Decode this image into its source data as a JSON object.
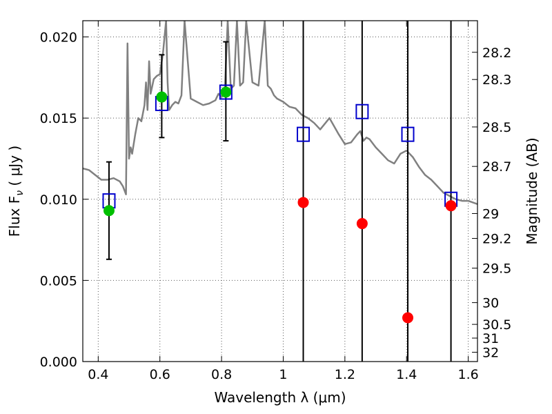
{
  "chart_data": {
    "type": "scatter",
    "xlabel": "Wavelength  λ (μm)",
    "ylabel": "Flux  F",
    "ylabel_sub": "ν",
    "ylabel_units": "  ( μJy )",
    "y2label": "Magnitude (AB)",
    "xlim": [
      0.35,
      1.63
    ],
    "ylim": [
      0.0,
      0.021
    ],
    "grid": true,
    "x_ticks": [
      0.4,
      0.6,
      0.8,
      1.0,
      1.2,
      1.4,
      1.6
    ],
    "x_tick_labels": [
      "0.4",
      "0.6",
      "0.8",
      "1",
      "1.2",
      "1.4",
      "1.6"
    ],
    "y_ticks": [
      0.0,
      0.005,
      0.01,
      0.015,
      0.02
    ],
    "y_tick_labels": [
      "0.000",
      "0.005",
      "0.010",
      "0.015",
      "0.020"
    ],
    "mag_ticks": [
      28.2,
      28.3,
      28.5,
      28.7,
      29,
      29.2,
      29.5,
      30,
      30.5,
      31,
      32
    ],
    "mag_tick_labels": [
      "28.2",
      "28.3",
      "28.5",
      "28.7",
      "29",
      "29.2",
      "29.5",
      "30",
      "30.5",
      "31",
      "32"
    ],
    "colors": {
      "model": "#808080",
      "observed": "#00bf00",
      "upper_limit": "#ff0000",
      "model_band": "#0000cc",
      "errorbar": "#000000",
      "grid": "#555555"
    },
    "series": [
      {
        "marker": "circle",
        "color": "#00bf00",
        "x": [
          0.435,
          0.606,
          0.814
        ],
        "y": [
          0.0093,
          0.0163,
          0.0166
        ],
        "yerr_low": [
          0.0063,
          0.0138,
          0.0136
        ],
        "yerr_high": [
          0.0123,
          0.0189,
          0.0197
        ]
      },
      {
        "marker": "circle",
        "color": "#ff0000",
        "x": [
          1.065,
          1.256,
          1.404,
          1.544
        ],
        "y": [
          0.0098,
          0.0085,
          0.0027,
          0.0096
        ],
        "limit_lines": true
      },
      {
        "marker": "open-square",
        "color": "#0000cc",
        "x": [
          0.435,
          0.606,
          0.814,
          1.065,
          1.256,
          1.404,
          1.544
        ],
        "y": [
          0.0099,
          0.0159,
          0.0166,
          0.014,
          0.0154,
          0.014,
          0.01
        ]
      },
      {
        "marker": "line",
        "color": "#808080",
        "x": [
          0.35,
          0.37,
          0.39,
          0.41,
          0.43,
          0.45,
          0.47,
          0.48,
          0.49,
          0.495,
          0.5,
          0.505,
          0.51,
          0.52,
          0.53,
          0.54,
          0.55,
          0.555,
          0.56,
          0.565,
          0.57,
          0.58,
          0.59,
          0.6,
          0.61,
          0.62,
          0.625,
          0.63,
          0.64,
          0.65,
          0.66,
          0.67,
          0.68,
          0.7,
          0.72,
          0.74,
          0.76,
          0.78,
          0.79,
          0.8,
          0.81,
          0.82,
          0.83,
          0.84,
          0.85,
          0.86,
          0.87,
          0.88,
          0.9,
          0.92,
          0.94,
          0.95,
          0.96,
          0.97,
          0.98,
          1.0,
          1.02,
          1.04,
          1.06,
          1.08,
          1.1,
          1.12,
          1.15,
          1.18,
          1.2,
          1.22,
          1.24,
          1.25,
          1.26,
          1.27,
          1.28,
          1.3,
          1.32,
          1.34,
          1.36,
          1.38,
          1.4,
          1.42,
          1.44,
          1.46,
          1.48,
          1.5,
          1.52,
          1.54,
          1.56,
          1.58,
          1.6,
          1.63
        ],
        "y": [
          0.0119,
          0.0118,
          0.0115,
          0.0112,
          0.0112,
          0.0113,
          0.0111,
          0.0108,
          0.0103,
          0.0196,
          0.0125,
          0.0132,
          0.0128,
          0.014,
          0.015,
          0.0148,
          0.0158,
          0.0172,
          0.0155,
          0.0185,
          0.0165,
          0.0174,
          0.0176,
          0.0177,
          0.019,
          0.021,
          0.0172,
          0.0155,
          0.0158,
          0.016,
          0.0159,
          0.0164,
          0.021,
          0.0162,
          0.016,
          0.0158,
          0.0159,
          0.0161,
          0.0165,
          0.0163,
          0.0165,
          0.021,
          0.0168,
          0.017,
          0.021,
          0.017,
          0.0172,
          0.021,
          0.0172,
          0.017,
          0.021,
          0.017,
          0.0168,
          0.0164,
          0.0162,
          0.016,
          0.0157,
          0.0156,
          0.0152,
          0.015,
          0.0147,
          0.0143,
          0.015,
          0.014,
          0.0134,
          0.0135,
          0.014,
          0.0142,
          0.0136,
          0.0138,
          0.0137,
          0.0132,
          0.0128,
          0.0124,
          0.0122,
          0.0128,
          0.013,
          0.0126,
          0.012,
          0.0115,
          0.0112,
          0.0108,
          0.0104,
          0.0102,
          0.01,
          0.0099,
          0.0099,
          0.0097
        ]
      }
    ]
  }
}
